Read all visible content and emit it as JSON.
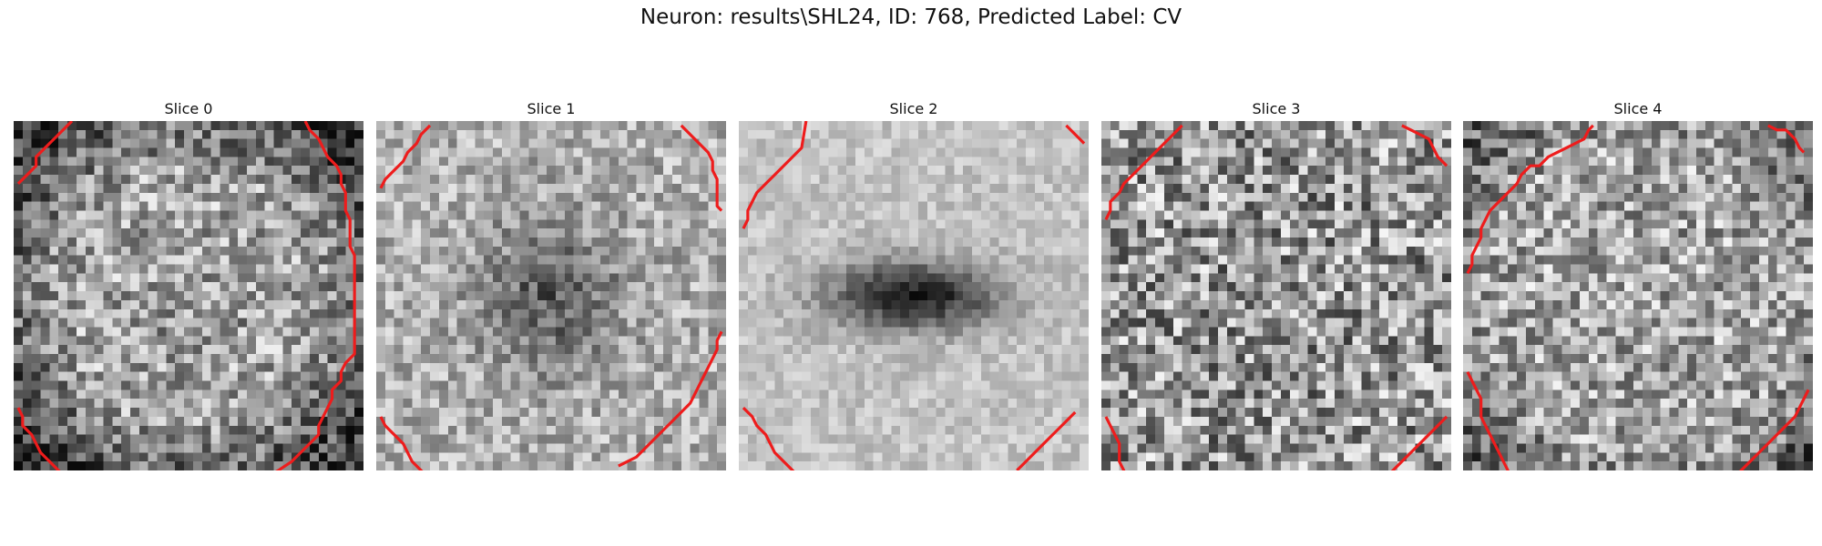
{
  "figure": {
    "title": "Neuron: results\\SHL24, ID: 768, Predicted Label: CV"
  },
  "slices": [
    {
      "label": "Slice 0",
      "pattern": "ring-bright",
      "contour_color": "#ee1c1c",
      "contours": [
        [
          [
            0.5,
            7.0
          ],
          [
            1.5,
            6.0
          ],
          [
            2.5,
            5.0
          ],
          [
            2.5,
            4.0
          ],
          [
            3.5,
            3.0
          ],
          [
            4.5,
            2.0
          ],
          [
            5.5,
            1.0
          ],
          [
            6.5,
            0.0
          ]
        ],
        [
          [
            32.5,
            0.0
          ],
          [
            33.0,
            1.0
          ],
          [
            34.0,
            2.0
          ],
          [
            34.5,
            3.0
          ],
          [
            35.0,
            4.0
          ],
          [
            36.0,
            5.0
          ],
          [
            36.5,
            6.0
          ],
          [
            36.5,
            7.0
          ],
          [
            37.0,
            8.0
          ],
          [
            37.0,
            9.0
          ],
          [
            37.0,
            10.0
          ],
          [
            37.5,
            11.0
          ],
          [
            37.5,
            12.0
          ],
          [
            37.5,
            13.0
          ],
          [
            37.5,
            14.0
          ],
          [
            38.0,
            15.0
          ],
          [
            38.0,
            16.0
          ],
          [
            38.0,
            17.0
          ],
          [
            38.0,
            18.0
          ],
          [
            38.0,
            19.0
          ],
          [
            38.0,
            20.0
          ],
          [
            38.0,
            21.0
          ],
          [
            38.0,
            22.0
          ],
          [
            38.0,
            23.0
          ],
          [
            38.0,
            24.0
          ],
          [
            38.0,
            25.0
          ],
          [
            38.0,
            26.0
          ],
          [
            37.0,
            27.0
          ],
          [
            36.5,
            28.0
          ],
          [
            36.5,
            29.0
          ],
          [
            35.5,
            30.0
          ],
          [
            35.5,
            31.0
          ],
          [
            35.0,
            32.0
          ],
          [
            34.5,
            33.0
          ],
          [
            34.0,
            34.0
          ],
          [
            34.0,
            35.0
          ],
          [
            33.0,
            36.0
          ],
          [
            32.0,
            37.0
          ],
          [
            31.0,
            38.0
          ],
          [
            29.5,
            39.0
          ],
          [
            28.5,
            39.5
          ],
          [
            27.5,
            40.5
          ],
          [
            26.5,
            41.0
          ],
          [
            25.5,
            42.0
          ],
          [
            24.0,
            42.5
          ],
          [
            23.0,
            42.5
          ],
          [
            22.0,
            43.0
          ],
          [
            21.0,
            44.0
          ],
          [
            20.0,
            44.5
          ],
          [
            12.0,
            44.5
          ],
          [
            11.0,
            44.5
          ],
          [
            10.0,
            43.5
          ],
          [
            9.0,
            43.0
          ],
          [
            8.0,
            42.0
          ],
          [
            7.0,
            41.0
          ],
          [
            6.0,
            40.0
          ],
          [
            5.0,
            39.0
          ],
          [
            4.0,
            38.0
          ],
          [
            3.0,
            37.0
          ],
          [
            2.5,
            36.0
          ],
          [
            2.0,
            35.0
          ],
          [
            1.0,
            34.0
          ],
          [
            1.0,
            33.0
          ],
          [
            0.5,
            32.0
          ]
        ]
      ]
    },
    {
      "label": "Slice 1",
      "pattern": "dark-center-soft",
      "contour_color": "#ee1c1c",
      "contours": [
        [
          [
            0.5,
            7.5
          ],
          [
            1.0,
            6.5
          ],
          [
            2.0,
            5.5
          ],
          [
            3.0,
            4.5
          ],
          [
            3.5,
            3.5
          ],
          [
            4.5,
            2.5
          ],
          [
            5.0,
            1.5
          ],
          [
            6.0,
            0.5
          ]
        ],
        [
          [
            34.0,
            0.5
          ],
          [
            35.0,
            1.5
          ],
          [
            36.0,
            2.5
          ],
          [
            37.0,
            3.5
          ],
          [
            37.5,
            4.5
          ],
          [
            37.5,
            5.5
          ],
          [
            38.0,
            6.5
          ],
          [
            38.0,
            7.5
          ],
          [
            38.0,
            8.5
          ],
          [
            38.0,
            9.5
          ],
          [
            38.5,
            10.0
          ]
        ],
        [
          [
            38.5,
            23.5
          ],
          [
            38.0,
            24.5
          ],
          [
            38.0,
            25.5
          ],
          [
            37.5,
            26.5
          ],
          [
            37.0,
            27.5
          ],
          [
            36.5,
            28.5
          ],
          [
            36.0,
            29.5
          ],
          [
            35.5,
            30.5
          ],
          [
            35.0,
            31.5
          ],
          [
            34.0,
            32.5
          ],
          [
            33.0,
            33.5
          ],
          [
            32.0,
            34.5
          ],
          [
            31.0,
            35.5
          ],
          [
            30.0,
            36.5
          ],
          [
            29.0,
            37.5
          ],
          [
            28.0,
            38.0
          ],
          [
            27.0,
            38.5
          ]
        ],
        [
          [
            0.5,
            33.0
          ],
          [
            1.0,
            34.0
          ],
          [
            2.0,
            35.0
          ],
          [
            3.0,
            36.0
          ],
          [
            3.5,
            37.0
          ],
          [
            4.0,
            38.0
          ],
          [
            5.0,
            39.0
          ],
          [
            6.0,
            40.0
          ],
          [
            6.5,
            40.5
          ]
        ]
      ]
    },
    {
      "label": "Slice 2",
      "pattern": "dark-ellipse",
      "contour_color": "#ee1c1c",
      "contours": [
        [
          [
            0.5,
            12.0
          ],
          [
            1.0,
            11.0
          ],
          [
            1.0,
            10.0
          ],
          [
            1.5,
            9.0
          ],
          [
            2.0,
            8.0
          ],
          [
            3.0,
            7.0
          ],
          [
            4.0,
            6.0
          ],
          [
            5.0,
            5.0
          ],
          [
            6.0,
            4.0
          ],
          [
            7.0,
            3.0
          ],
          [
            7.5,
            0.0
          ]
        ],
        [
          [
            36.5,
            0.5
          ],
          [
            37.5,
            1.5
          ],
          [
            38.5,
            2.5
          ]
        ],
        [
          [
            0.5,
            32.0
          ],
          [
            1.5,
            33.0
          ],
          [
            2.0,
            34.0
          ],
          [
            3.0,
            35.0
          ],
          [
            3.5,
            36.0
          ],
          [
            4.0,
            37.0
          ],
          [
            5.0,
            38.0
          ],
          [
            6.0,
            39.0
          ],
          [
            6.5,
            39.5
          ]
        ],
        [
          [
            37.5,
            32.5
          ],
          [
            36.5,
            33.5
          ],
          [
            35.5,
            34.5
          ],
          [
            34.5,
            35.5
          ],
          [
            33.5,
            36.5
          ],
          [
            32.5,
            37.5
          ],
          [
            31.5,
            38.5
          ],
          [
            31.0,
            39.0
          ]
        ]
      ]
    },
    {
      "label": "Slice 3",
      "pattern": "noise",
      "contour_color": "#ee1c1c",
      "contours": [
        [
          [
            0.5,
            11.0
          ],
          [
            1.0,
            10.0
          ],
          [
            1.0,
            9.0
          ],
          [
            2.0,
            8.0
          ],
          [
            2.5,
            7.0
          ],
          [
            3.5,
            6.0
          ],
          [
            4.5,
            5.0
          ],
          [
            5.5,
            4.0
          ],
          [
            6.5,
            3.0
          ],
          [
            7.5,
            2.0
          ],
          [
            8.5,
            1.0
          ],
          [
            9.0,
            0.5
          ]
        ],
        [
          [
            33.5,
            0.5
          ],
          [
            34.5,
            1.0
          ],
          [
            35.5,
            1.5
          ],
          [
            36.5,
            2.0
          ],
          [
            37.0,
            3.0
          ],
          [
            37.5,
            4.0
          ],
          [
            38.5,
            5.0
          ]
        ],
        [
          [
            0.5,
            33.0
          ],
          [
            1.0,
            34.0
          ],
          [
            1.5,
            35.0
          ],
          [
            2.0,
            36.0
          ],
          [
            2.0,
            37.0
          ],
          [
            2.0,
            38.0
          ],
          [
            2.5,
            39.0
          ],
          [
            2.5,
            39.5
          ]
        ],
        [
          [
            38.5,
            33.0
          ],
          [
            37.5,
            34.0
          ],
          [
            36.5,
            35.0
          ],
          [
            35.5,
            36.0
          ],
          [
            34.5,
            37.0
          ],
          [
            33.5,
            38.0
          ],
          [
            32.5,
            39.0
          ],
          [
            32.0,
            39.5
          ]
        ]
      ]
    },
    {
      "label": "Slice 4",
      "pattern": "noise-bright",
      "contour_color": "#ee1c1c",
      "contours": [
        [
          [
            0.5,
            17.0
          ],
          [
            1.0,
            16.0
          ],
          [
            1.0,
            15.0
          ],
          [
            1.5,
            14.0
          ],
          [
            2.0,
            13.0
          ],
          [
            2.0,
            12.0
          ],
          [
            2.5,
            11.0
          ],
          [
            3.0,
            10.0
          ],
          [
            4.0,
            9.0
          ],
          [
            5.0,
            8.0
          ],
          [
            6.0,
            7.0
          ],
          [
            6.5,
            6.0
          ],
          [
            7.5,
            5.0
          ],
          [
            8.5,
            5.0
          ],
          [
            9.5,
            4.0
          ],
          [
            10.5,
            3.5
          ],
          [
            11.5,
            3.0
          ],
          [
            12.5,
            2.5
          ],
          [
            13.5,
            2.0
          ],
          [
            14.0,
            1.0
          ],
          [
            14.5,
            0.5
          ]
        ],
        [
          [
            34.0,
            0.5
          ],
          [
            35.0,
            1.0
          ],
          [
            36.0,
            1.0
          ],
          [
            37.0,
            2.0
          ],
          [
            37.5,
            3.0
          ],
          [
            38.0,
            3.5
          ]
        ],
        [
          [
            0.5,
            28.0
          ],
          [
            1.0,
            29.0
          ],
          [
            1.5,
            30.0
          ],
          [
            2.0,
            31.0
          ],
          [
            2.0,
            32.0
          ],
          [
            2.0,
            33.0
          ],
          [
            2.5,
            34.0
          ],
          [
            3.0,
            35.0
          ],
          [
            3.5,
            36.0
          ],
          [
            4.0,
            37.0
          ],
          [
            4.5,
            38.0
          ],
          [
            5.0,
            39.0
          ],
          [
            5.0,
            39.5
          ]
        ],
        [
          [
            38.5,
            30.0
          ],
          [
            38.0,
            31.0
          ],
          [
            37.5,
            32.0
          ],
          [
            37.0,
            33.0
          ],
          [
            36.0,
            34.0
          ],
          [
            35.0,
            35.0
          ],
          [
            34.0,
            36.0
          ],
          [
            33.0,
            37.0
          ],
          [
            32.0,
            38.0
          ],
          [
            31.0,
            39.0
          ],
          [
            30.5,
            39.5
          ]
        ]
      ]
    }
  ]
}
